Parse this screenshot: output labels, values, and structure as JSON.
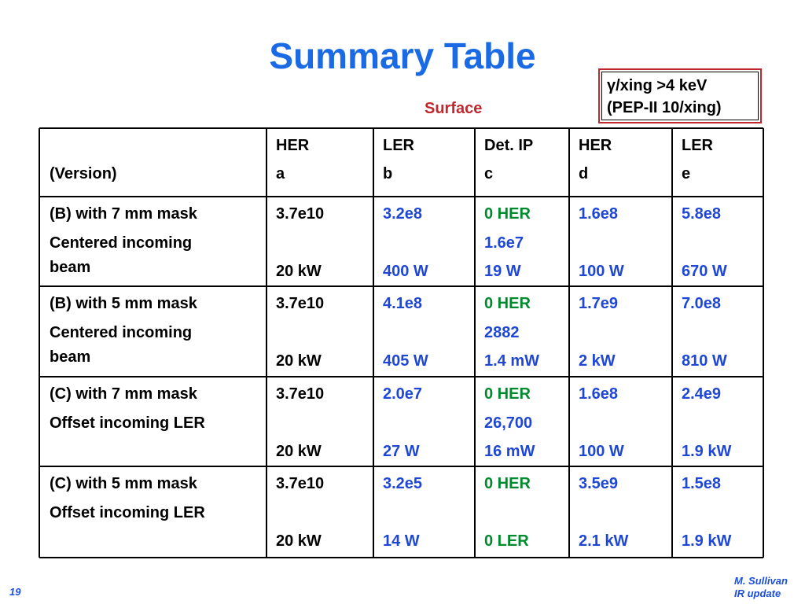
{
  "header": {
    "title": "Summary Table"
  },
  "note": {
    "lines": [
      "γ/xing >4 keV",
      "(PEP-II 10/xing)"
    ]
  },
  "surface_label": "Surface",
  "table": {
    "version_header": "(Version)",
    "columns": [
      {
        "name": "HER",
        "letter": "a",
        "color": "#000000"
      },
      {
        "name": "LER",
        "letter": "b",
        "color": "#1f47d6"
      },
      {
        "name": "Det. IP",
        "letter": "c",
        "color": "#1f47d6"
      },
      {
        "name": "HER",
        "letter": "d",
        "color": "#1f47d6"
      },
      {
        "name": "LER",
        "letter": "e",
        "color": "#1f47d6"
      }
    ],
    "rows": [
      {
        "label": [
          "(B) with 7 mm mask",
          "Centered incoming beam"
        ],
        "cells": [
          {
            "top": "3.7e10",
            "bottom": "20 kW"
          },
          {
            "top": "3.2e8",
            "bottom": "400 W"
          },
          {
            "top": "0 HER",
            "middle": "1.6e7",
            "bottom": "19 W",
            "top_color": "#008a2e"
          },
          {
            "top": "1.6e8",
            "bottom": "100 W"
          },
          {
            "top": "5.8e8",
            "bottom": "670 W"
          }
        ]
      },
      {
        "label": [
          "(B) with 5 mm mask",
          "Centered incoming beam"
        ],
        "cells": [
          {
            "top": "3.7e10",
            "bottom": "20 kW"
          },
          {
            "top": "4.1e8",
            "bottom": "405 W"
          },
          {
            "top": "0 HER",
            "middle": "2882",
            "bottom": "1.4 mW",
            "top_color": "#008a2e"
          },
          {
            "top": "1.7e9",
            "bottom": "2 kW"
          },
          {
            "top": "7.0e8",
            "bottom": "810 W"
          }
        ]
      },
      {
        "label": [
          "(C) with 7 mm mask",
          "Offset incoming LER"
        ],
        "cells": [
          {
            "top": "3.7e10",
            "bottom": "20 kW"
          },
          {
            "top": "2.0e7",
            "bottom": "27 W"
          },
          {
            "top": "0 HER",
            "middle": "26,700",
            "bottom": "16 mW",
            "top_color": "#008a2e"
          },
          {
            "top": "1.6e8",
            "bottom": "100 W"
          },
          {
            "top": "2.4e9",
            "bottom": "1.9 kW"
          }
        ]
      },
      {
        "label": [
          "(C) with 5 mm mask",
          "Offset incoming LER"
        ],
        "cells": [
          {
            "top": "3.7e10",
            "bottom": "20 kW"
          },
          {
            "top": "3.2e5",
            "bottom": "14 W"
          },
          {
            "top": "0 HER",
            "bottom": "0 LER",
            "top_color": "#008a2e",
            "bottom_color": "#008a2e"
          },
          {
            "top": "3.5e9",
            "bottom": "2.1 kW"
          },
          {
            "top": "1.5e8",
            "bottom": "1.9 kW"
          }
        ]
      }
    ]
  },
  "footer": {
    "page": "19",
    "author": "M. Sullivan",
    "subtitle": "IR update"
  }
}
